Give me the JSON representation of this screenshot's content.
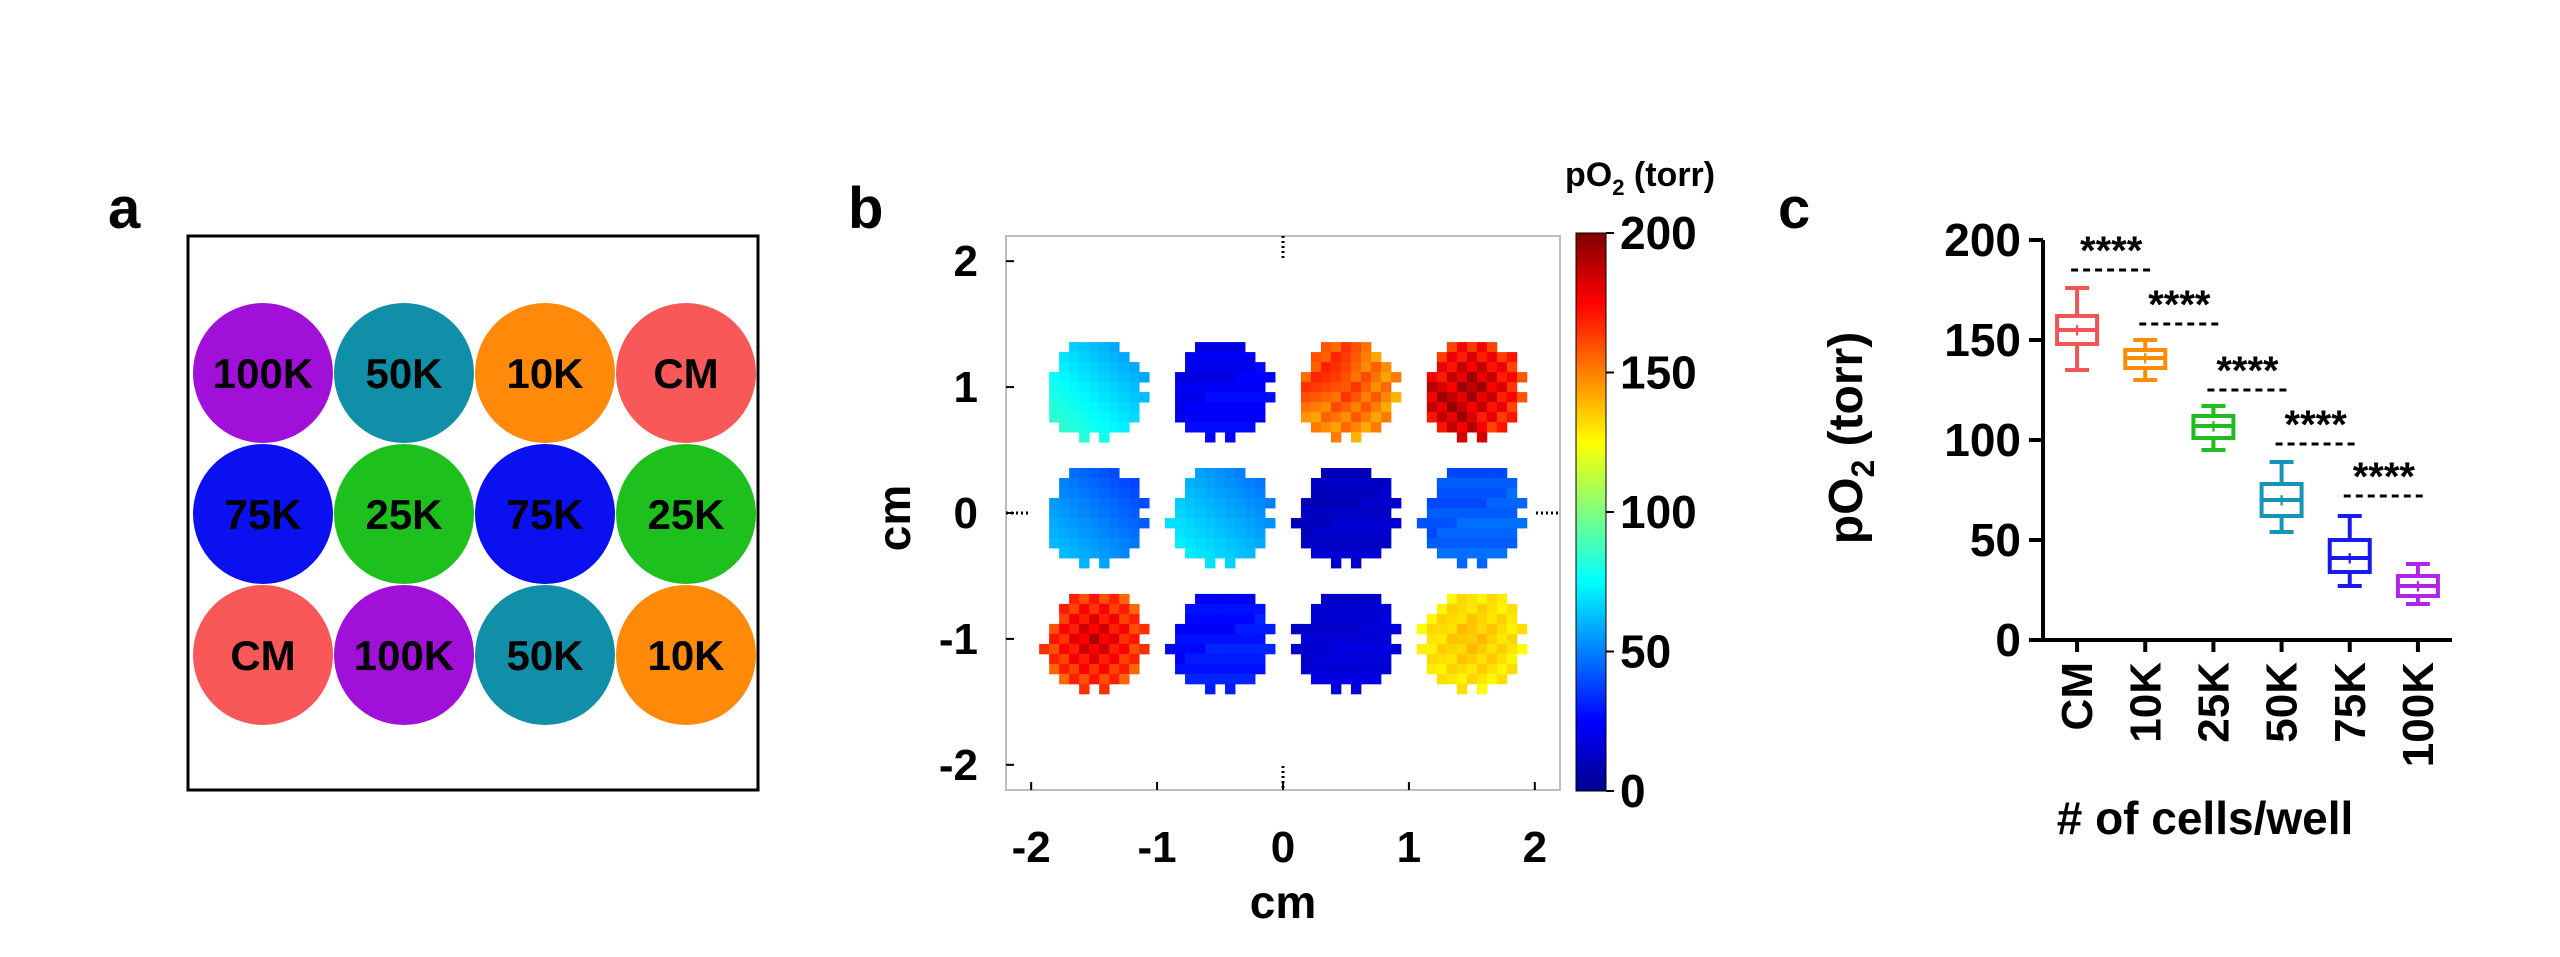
{
  "panel_a": {
    "label": "a",
    "wells": [
      {
        "text": "100K",
        "color": "#a010d8"
      },
      {
        "text": "50K",
        "color": "#118fa8"
      },
      {
        "text": "10K",
        "color": "#ff8a0a"
      },
      {
        "text": "CM",
        "color": "#f85858"
      },
      {
        "text": "75K",
        "color": "#0a10f0"
      },
      {
        "text": "25K",
        "color": "#1ec01e"
      },
      {
        "text": "75K",
        "color": "#0a10f0"
      },
      {
        "text": "25K",
        "color": "#1ec01e"
      },
      {
        "text": "CM",
        "color": "#f85858"
      },
      {
        "text": "100K",
        "color": "#a010d8"
      },
      {
        "text": "50K",
        "color": "#118fa8"
      },
      {
        "text": "10K",
        "color": "#ff8a0a"
      }
    ]
  },
  "panel_b": {
    "label": "b",
    "xlabel": "cm",
    "ylabel": "cm",
    "x_ticks": [
      "-2",
      "-1",
      "0",
      "1",
      "2"
    ],
    "y_ticks": [
      "2",
      "1",
      "0",
      "-1",
      "-2"
    ],
    "colorbar_title": "pO",
    "colorbar_sub": "2",
    "colorbar_unit": " (torr)",
    "colorbar_ticks": [
      "200",
      "150",
      "100",
      "50",
      "0"
    ],
    "colorbar_range": [
      0,
      200
    ],
    "wells_po2": [
      {
        "row": 1,
        "col": -1.5,
        "base": 70,
        "var": 12,
        "pattern": "diag"
      },
      {
        "row": 1,
        "col": -0.5,
        "base": 25,
        "var": 6,
        "pattern": "flat"
      },
      {
        "row": 1,
        "col": 0.5,
        "base": 145,
        "var": 18,
        "pattern": "blob"
      },
      {
        "row": 1,
        "col": 1.5,
        "base": 170,
        "var": 25,
        "pattern": "hot"
      },
      {
        "row": 0,
        "col": -1.5,
        "base": 50,
        "var": 10,
        "pattern": "diag"
      },
      {
        "row": 0,
        "col": -0.5,
        "base": 60,
        "var": 10,
        "pattern": "diag"
      },
      {
        "row": 0,
        "col": 0.5,
        "base": 15,
        "var": 4,
        "pattern": "flat"
      },
      {
        "row": 0,
        "col": 1.5,
        "base": 45,
        "var": 6,
        "pattern": "flat"
      },
      {
        "row": -1,
        "col": -1.5,
        "base": 165,
        "var": 22,
        "pattern": "hot"
      },
      {
        "row": -1,
        "col": -0.5,
        "base": 30,
        "var": 6,
        "pattern": "flat"
      },
      {
        "row": -1,
        "col": 0.5,
        "base": 18,
        "var": 4,
        "pattern": "flat"
      },
      {
        "row": -1,
        "col": 1.5,
        "base": 128,
        "var": 10,
        "pattern": "blob"
      }
    ]
  },
  "chart_data": {
    "type": "box",
    "label": "c",
    "xlabel": "# of cells/well",
    "ylabel": "pO",
    "ylabel_sub": "2",
    "ylabel_unit": " (torr)",
    "ylim": [
      0,
      200
    ],
    "yticks": [
      "0",
      "50",
      "100",
      "150",
      "200"
    ],
    "categories": [
      "CM",
      "10K",
      "25K",
      "50K",
      "75K",
      "100K"
    ],
    "colors": [
      "#f05555",
      "#ff8c00",
      "#22bb22",
      "#1596b8",
      "#1a1aee",
      "#b025e8"
    ],
    "boxes": [
      {
        "min": 135,
        "q1": 148,
        "median": 155,
        "q3": 162,
        "max": 176,
        "mean": 155
      },
      {
        "min": 130,
        "q1": 136,
        "median": 141,
        "q3": 145,
        "max": 150,
        "mean": 141
      },
      {
        "min": 95,
        "q1": 101,
        "median": 107,
        "q3": 112,
        "max": 117,
        "mean": 107
      },
      {
        "min": 54,
        "q1": 62,
        "median": 70,
        "q3": 78,
        "max": 89,
        "mean": 70
      },
      {
        "min": 27,
        "q1": 34,
        "median": 41,
        "q3": 50,
        "max": 62,
        "mean": 41
      },
      {
        "min": 18,
        "q1": 22,
        "median": 27,
        "q3": 32,
        "max": 38,
        "mean": 27
      }
    ],
    "significance": [
      {
        "from": 0,
        "to": 1,
        "text": "****",
        "y": 185
      },
      {
        "from": 1,
        "to": 2,
        "text": "****",
        "y": 158
      },
      {
        "from": 2,
        "to": 3,
        "text": "****",
        "y": 125
      },
      {
        "from": 3,
        "to": 4,
        "text": "****",
        "y": 98
      },
      {
        "from": 4,
        "to": 5,
        "text": "****",
        "y": 72
      }
    ]
  }
}
